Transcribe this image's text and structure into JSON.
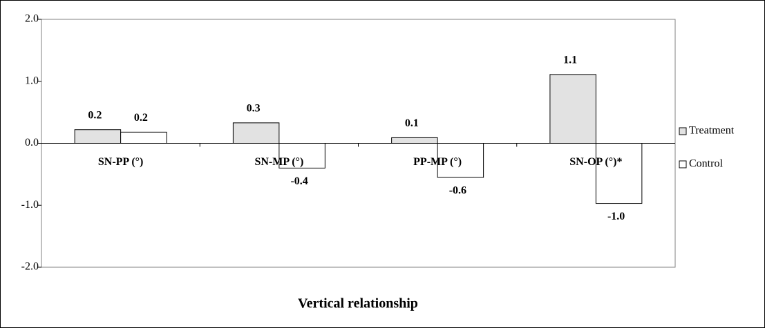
{
  "chart_data": {
    "type": "bar",
    "x_label": "Vertical relationship",
    "categories": [
      "SN-PP (°)",
      "SN-MP (°)",
      "PP-MP (°)",
      "SN-OP (°)*"
    ],
    "series": [
      {
        "name": "Treatment",
        "color": "#e2e2e2",
        "values": [
          0.22,
          0.33,
          0.09,
          1.11
        ],
        "value_labels": [
          "0.2",
          "0.3",
          "0.1",
          "1.1"
        ]
      },
      {
        "name": "Control",
        "color": "#ffffff",
        "values": [
          0.18,
          -0.4,
          -0.55,
          -0.97
        ],
        "value_labels": [
          "0.2",
          "-0.4",
          "-0.6",
          "-1.0"
        ]
      }
    ],
    "ylim": [
      -2,
      2
    ],
    "yticks": [
      {
        "value": -2,
        "label": "-2.0"
      },
      {
        "value": -1,
        "label": "-1.0"
      },
      {
        "value": 0,
        "label": "0.0"
      },
      {
        "value": 1,
        "label": "1.0"
      },
      {
        "value": 2,
        "label": "2.0"
      }
    ],
    "legend": "right"
  }
}
